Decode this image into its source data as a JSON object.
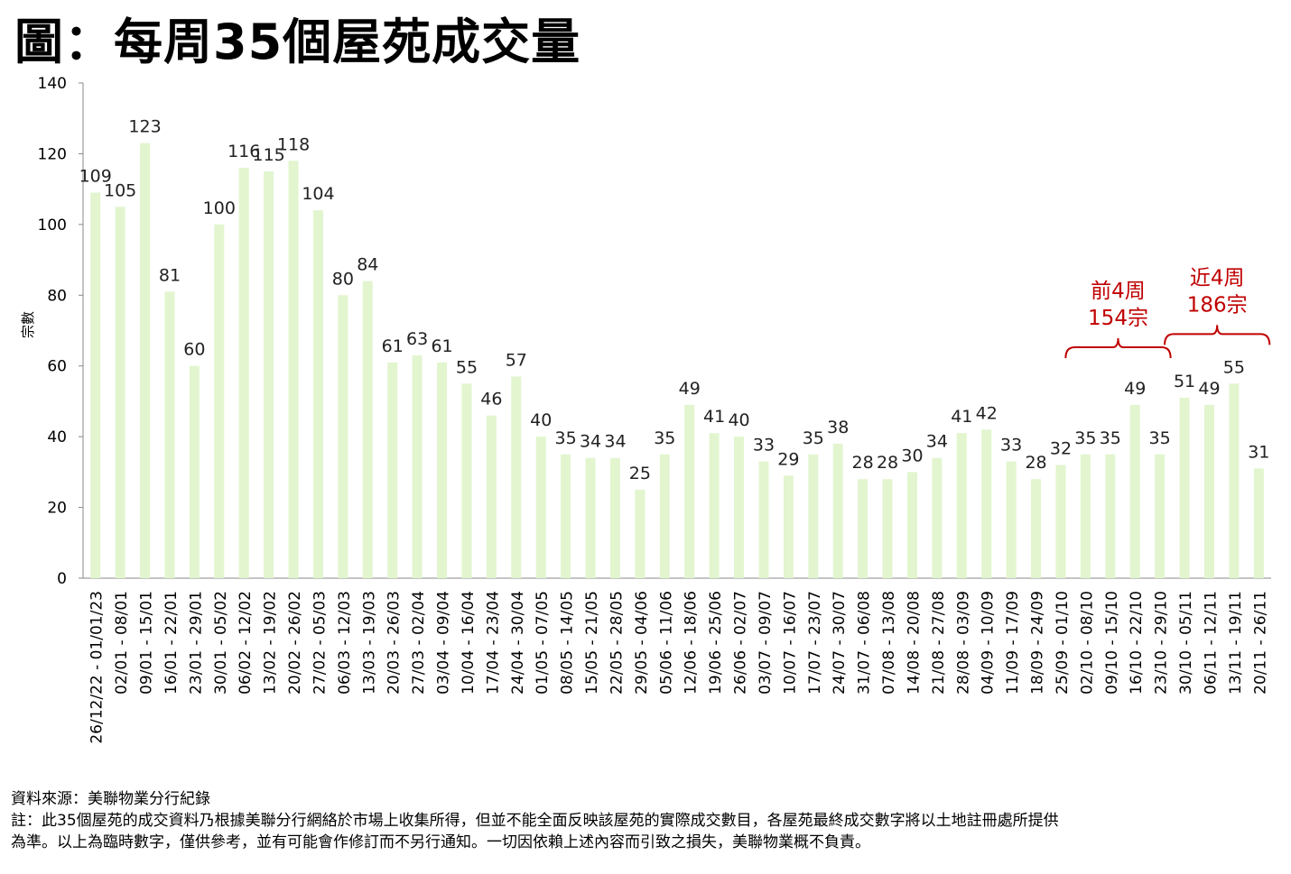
{
  "title": "圖：每周35個屋苑成交量",
  "chart_data": {
    "type": "bar",
    "title": "圖：每周35個屋苑成交量",
    "xlabel": "",
    "ylabel": "宗數",
    "ylim": [
      0,
      140
    ],
    "yticks": [
      0,
      20,
      40,
      60,
      80,
      100,
      120,
      140
    ],
    "grid": false,
    "bar_color": "#e2f5cf",
    "categories": [
      "26/12/22 - 01/01/23",
      "02/01 - 08/01",
      "09/01 - 15/01",
      "16/01 - 22/01",
      "23/01 - 29/01",
      "30/01 - 05/02",
      "06/02 - 12/02",
      "13/02 - 19/02",
      "20/02 - 26/02",
      "27/02 - 05/03",
      "06/03 - 12/03",
      "13/03 - 19/03",
      "20/03 - 26/03",
      "27/03 - 02/04",
      "03/04 - 09/04",
      "10/04 - 16/04",
      "17/04 - 23/04",
      "24/04 - 30/04",
      "01/05 - 07/05",
      "08/05 - 14/05",
      "15/05 - 21/05",
      "22/05 - 28/05",
      "29/05 - 04/06",
      "05/06 - 11/06",
      "12/06 - 18/06",
      "19/06 - 25/06",
      "26/06 - 02/07",
      "03/07 - 09/07",
      "10/07 - 16/07",
      "17/07 - 23/07",
      "24/07 - 30/07",
      "31/07 - 06/08",
      "07/08 - 13/08",
      "14/08 - 20/08",
      "21/08 - 27/08",
      "28/08 - 03/09",
      "04/09 - 10/09",
      "11/09 - 17/09",
      "18/09 - 24/09",
      "25/09 - 01/10",
      "02/10 - 08/10",
      "09/10 - 15/10",
      "16/10 - 22/10",
      "23/10 - 29/10",
      "30/10 - 05/11",
      "06/11 - 12/11",
      "13/11 - 19/11",
      "20/11 - 26/11"
    ],
    "values": [
      109,
      105,
      123,
      81,
      60,
      100,
      116,
      115,
      118,
      104,
      80,
      84,
      61,
      63,
      61,
      55,
      46,
      57,
      40,
      35,
      34,
      34,
      25,
      35,
      49,
      41,
      40,
      33,
      29,
      35,
      38,
      28,
      28,
      30,
      34,
      41,
      42,
      33,
      28,
      32,
      35,
      35,
      49,
      35,
      51,
      49,
      55,
      31
    ],
    "annotations": [
      {
        "line1": "前4周",
        "line2": "154宗",
        "from_index": 40,
        "to_index": 43,
        "color": "#c00000"
      },
      {
        "line1": "近4周",
        "line2": "186宗",
        "from_index": 44,
        "to_index": 47,
        "color": "#c00000"
      }
    ]
  },
  "notes": {
    "source": "資料來源：美聯物業分行紀錄",
    "line1": "註：此35個屋苑的成交資料乃根據美聯分行網絡於市場上收集所得，但並不能全面反映該屋苑的實際成交數目，各屋苑最終成交數字將以土地註冊處所提供",
    "line2": "為準。以上為臨時數字，僅供參考，並有可能會作修訂而不另行通知。一切因依賴上述內容而引致之損失，美聯物業概不負責。"
  }
}
